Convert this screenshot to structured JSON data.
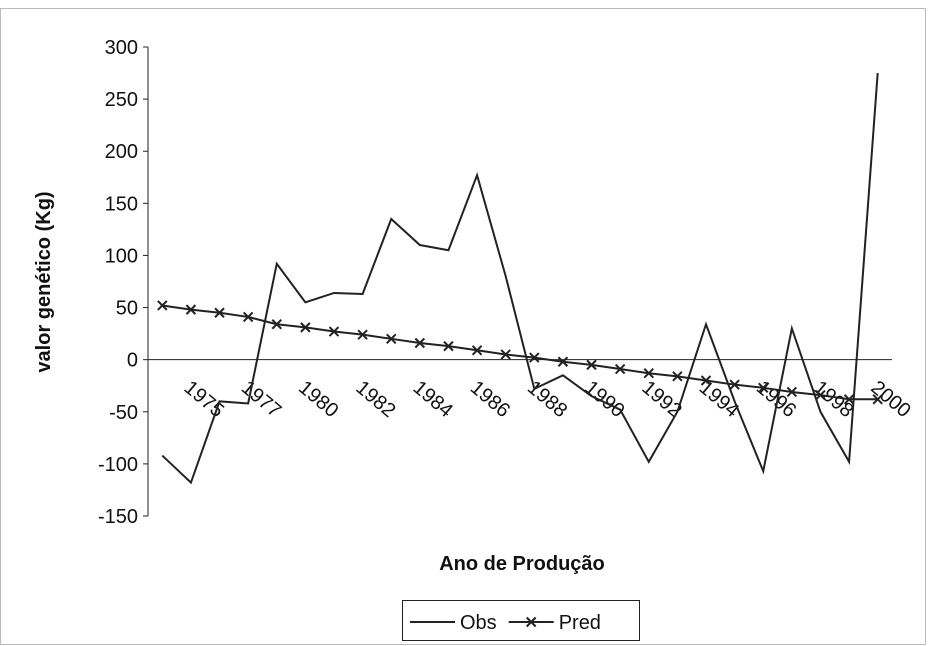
{
  "chart_data": {
    "type": "line",
    "y_label": "valor genético (Kg)",
    "x_label": "Ano de Produção",
    "categories": [
      null,
      "1975",
      null,
      "1977",
      null,
      "1980",
      null,
      "1982",
      null,
      "1984",
      null,
      "1986",
      null,
      "1988",
      null,
      "1990",
      null,
      "1992",
      null,
      "1994",
      null,
      "1996",
      null,
      "1998",
      null,
      "2000"
    ],
    "series": [
      {
        "name": "Obs",
        "color": "#222222",
        "marker": "none",
        "values": [
          -92,
          -118,
          -40,
          -42,
          92,
          55,
          64,
          63,
          135,
          110,
          105,
          177,
          80,
          -28,
          -15,
          -35,
          -48,
          -98,
          -50,
          34,
          -40,
          -107,
          30,
          -50,
          -98,
          275
        ]
      },
      {
        "name": "Pred",
        "color": "#222222",
        "marker": "x",
        "values": [
          52,
          48,
          45,
          41,
          34,
          31,
          27,
          24,
          20,
          16,
          13,
          9,
          5,
          2,
          -2,
          -5,
          -9,
          -13,
          -16,
          -20,
          -24,
          -27,
          -31,
          -34,
          -38,
          -38
        ]
      }
    ],
    "ylim": [
      -150,
      300
    ],
    "yticks": [
      -150,
      -100,
      -50,
      0,
      50,
      100,
      150,
      200,
      250,
      300
    ],
    "legend": "bottom"
  }
}
